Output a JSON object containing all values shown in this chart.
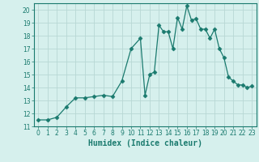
{
  "x": [
    0,
    1,
    2,
    3,
    4,
    5,
    6,
    7,
    8,
    9,
    10,
    11,
    11.5,
    12,
    12.5,
    13,
    13.5,
    14,
    14.5,
    15,
    15.5,
    16,
    16.5,
    17,
    17.5,
    18,
    18.5,
    19,
    19.5,
    20,
    20.5,
    21,
    21.5,
    22,
    22.5,
    23
  ],
  "y": [
    11.5,
    11.5,
    11.7,
    12.5,
    13.2,
    13.2,
    13.3,
    13.4,
    13.3,
    14.5,
    17.0,
    17.8,
    13.4,
    15.0,
    15.2,
    18.8,
    18.3,
    18.3,
    17.0,
    19.4,
    18.5,
    20.3,
    19.2,
    19.3,
    18.5,
    18.5,
    17.8,
    18.5,
    17.0,
    16.3,
    14.8,
    14.5,
    14.2,
    14.2,
    14.0,
    14.1
  ],
  "line_color": "#1a7a6e",
  "marker": "D",
  "marker_size": 2.5,
  "bg_color": "#d6f0ed",
  "grid_color": "#b8d8d4",
  "xlabel": "Humidex (Indice chaleur)",
  "xlim": [
    -0.5,
    23.5
  ],
  "ylim": [
    11,
    20.5
  ],
  "yticks": [
    11,
    12,
    13,
    14,
    15,
    16,
    17,
    18,
    19,
    20
  ],
  "xticks": [
    0,
    1,
    2,
    3,
    4,
    5,
    6,
    7,
    8,
    9,
    10,
    11,
    12,
    13,
    14,
    15,
    16,
    17,
    18,
    19,
    20,
    21,
    22,
    23
  ],
  "xlabel_fontsize": 7,
  "tick_fontsize": 5.5
}
